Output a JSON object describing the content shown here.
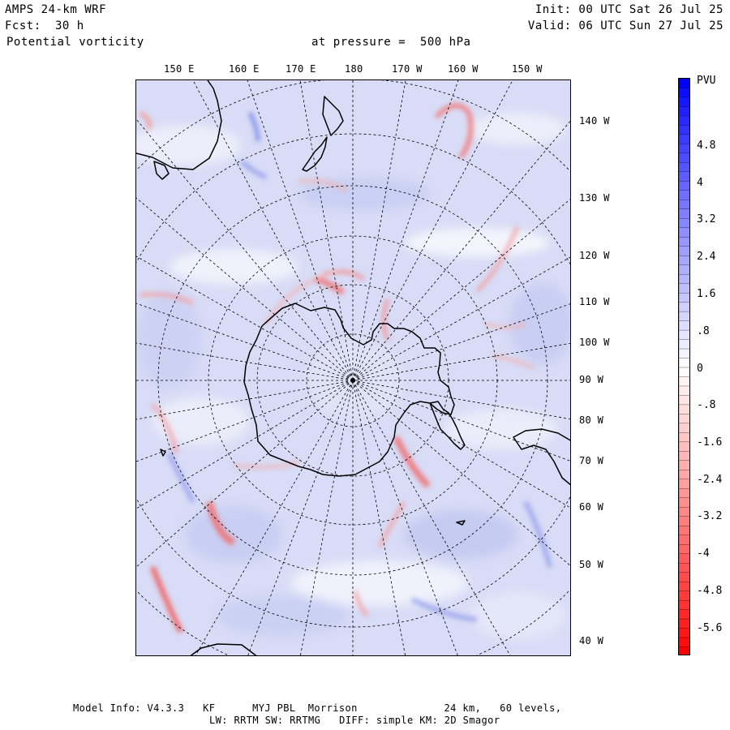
{
  "header": {
    "model": "AMPS 24-km WRF",
    "forecast_label": "Fcst:",
    "forecast_value": "30 h",
    "field": "Potential vorticity",
    "pressure": "at pressure =  500 hPa",
    "init": "Init: 00 UTC Sat 26 Jul 25",
    "valid": "Valid: 06 UTC Sun 27 Jul 25"
  },
  "map": {
    "top_longitudes": [
      "150 E",
      "160 E",
      "170 E",
      "180",
      "170 W",
      "160 W",
      "150 W"
    ],
    "right_longitudes": [
      "140 W",
      "130 W",
      "120 W",
      "110 W",
      "100 W",
      "90 W",
      "80 W",
      "70 W",
      "60 W",
      "50 W",
      "40 W"
    ],
    "colors": {
      "background_fill": "#d8dcf6",
      "positive": "#3344dd",
      "negative": "#f06060",
      "coastline": "#000000",
      "grid": "#000000"
    }
  },
  "colorbar": {
    "unit": "PVU",
    "tick_labels": [
      "4.8",
      "4",
      "3.2",
      "2.4",
      "1.6",
      ".8",
      "0",
      "-.8",
      "-1.6",
      "-2.4",
      "-3.2",
      "-4",
      "-4.8",
      "-5.6"
    ],
    "max_color": "#0000ff",
    "min_color": "#ff0000"
  },
  "footer": {
    "line1": "Model Info: V4.3.3   KF      MYJ PBL  Morrison              24 km,   60 levels,",
    "line2": "LW: RRTM SW: RRTMG   DIFF: simple KM: 2D Smagor"
  }
}
